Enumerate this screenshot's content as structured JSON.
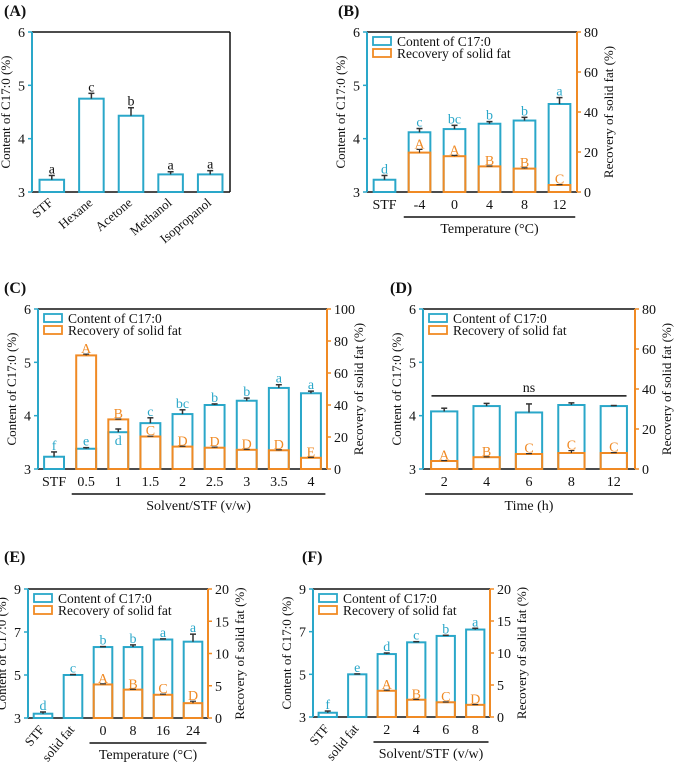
{
  "colors": {
    "content": "#2aa7c9",
    "recovery": "#f08a24",
    "error": "#333333"
  },
  "legend": {
    "content": "Content of C17:0",
    "recovery": "Recovery of solid fat"
  },
  "chart_data": [
    {
      "panel": "(A)",
      "type": "bar",
      "title": "",
      "ylabel": "Content of C17:0 (%)",
      "ylim": [
        3,
        6
      ],
      "yticks": [
        "3",
        "4",
        "5",
        "6"
      ],
      "categories": [
        "STF",
        "Hexane",
        "Acetone",
        "Methanol",
        "Isopropanol"
      ],
      "rotate": [
        true,
        true,
        true,
        true,
        true
      ],
      "content": [
        3.23,
        4.75,
        4.43,
        3.33,
        3.33
      ],
      "content_err": [
        0.08,
        0.1,
        0.15,
        0.05,
        0.07
      ],
      "content_letters": [
        "a",
        "c",
        "b",
        "a",
        "a"
      ],
      "xlabel": "",
      "legend": false
    },
    {
      "panel": "(B)",
      "type": "bar",
      "ylabel": "Content of C17:0 (%)",
      "ylim": [
        3,
        6
      ],
      "yticks": [
        "3",
        "4",
        "5",
        "6"
      ],
      "y2label": "Recovery of solid fat (%)",
      "y2lim": [
        0,
        80
      ],
      "y2ticks": [
        "0",
        "20",
        "40",
        "60",
        "80"
      ],
      "categories": [
        "STF",
        "-4",
        "0",
        "4",
        "8",
        "12"
      ],
      "rotate": [
        false,
        false,
        false,
        false,
        false,
        false
      ],
      "content": [
        3.23,
        4.12,
        4.18,
        4.28,
        4.34,
        4.65
      ],
      "content_err": [
        0.08,
        0.07,
        0.07,
        0.04,
        0.06,
        0.12
      ],
      "content_letters": [
        "d",
        "c",
        "bc",
        "b",
        "b",
        "a"
      ],
      "recovery": [
        null,
        19.7,
        17.9,
        12.8,
        11.7,
        3.5
      ],
      "recovery_err": [
        null,
        1.6,
        0.4,
        0.2,
        0.4,
        0.2
      ],
      "recovery_letters": [
        "",
        "A",
        "A",
        "B",
        "B",
        "C"
      ],
      "group": [
        1,
        5
      ],
      "xlabel": "Temperature (°C)",
      "legend": true
    },
    {
      "panel": "(C)",
      "type": "bar",
      "ylabel": "Content of C17:0 (%)",
      "ylim": [
        3,
        6
      ],
      "yticks": [
        "3",
        "4",
        "5",
        "6"
      ],
      "y2label": "Recovery of solid fat (%)",
      "y2lim": [
        0,
        100
      ],
      "y2ticks": [
        "0",
        "20",
        "40",
        "60",
        "80",
        "100"
      ],
      "categories": [
        "STF",
        "0.5",
        "1",
        "1.5",
        "2",
        "2.5",
        "3",
        "3.5",
        "4"
      ],
      "rotate": [
        false,
        false,
        false,
        false,
        false,
        false,
        false,
        false,
        false
      ],
      "content": [
        3.23,
        3.38,
        3.69,
        3.86,
        4.03,
        4.2,
        4.28,
        4.52,
        4.42
      ],
      "content_err": [
        0.09,
        0.02,
        0.06,
        0.1,
        0.08,
        0.02,
        0.05,
        0.06,
        0.04
      ],
      "content_letters": [
        "f",
        "e",
        "d",
        "c",
        "bc",
        "b",
        "b",
        "a",
        "a"
      ],
      "recovery": [
        null,
        71,
        31,
        20.3,
        14,
        13.3,
        12,
        11.7,
        7
      ],
      "recovery_err": [
        null,
        0.8,
        0.2,
        0.2,
        0.2,
        0.4,
        0.3,
        0.3,
        0.3
      ],
      "recovery_letters": [
        "",
        "A",
        "B",
        "C",
        "D",
        "D",
        "D",
        "D",
        "E"
      ],
      "group": [
        1,
        8
      ],
      "xlabel": "Solvent/STF (v/w)",
      "legend": true
    },
    {
      "panel": "(D)",
      "type": "bar",
      "ylabel": "Content of C17:0 (%)",
      "ylim": [
        3,
        6
      ],
      "yticks": [
        "3",
        "4",
        "5",
        "6"
      ],
      "y2label": "Recovery of solid fat (%)",
      "y2lim": [
        0,
        80
      ],
      "y2ticks": [
        "0",
        "20",
        "40",
        "60",
        "80"
      ],
      "categories": [
        "2",
        "4",
        "6",
        "8",
        "12"
      ],
      "rotate": [
        false,
        false,
        false,
        false,
        false
      ],
      "content": [
        4.08,
        4.18,
        4.06,
        4.2,
        4.18
      ],
      "content_err": [
        0.06,
        0.05,
        0.16,
        0.04,
        0.01
      ],
      "content_letters": [
        "",
        "",
        "",
        "",
        ""
      ],
      "recovery": [
        4,
        5.9,
        7.5,
        8,
        8
      ],
      "recovery_err": [
        0.2,
        0.2,
        0.2,
        1.2,
        0.2
      ],
      "recovery_letters": [
        "A",
        "B",
        "C",
        "C",
        "C"
      ],
      "group": [
        0,
        4
      ],
      "significance": {
        "label": "ns",
        "level": 4.37
      },
      "xlabel": "Time (h)",
      "legend": true
    },
    {
      "panel": "(E)",
      "type": "bar",
      "ylabel": "Content of C17:0 (%)",
      "ylim": [
        3,
        9
      ],
      "yticks": [
        "3",
        "5",
        "7",
        "9"
      ],
      "y2label": "Recovery of solid fat (%)",
      "y2lim": [
        0,
        20
      ],
      "y2ticks": [
        "0",
        "5",
        "10",
        "15",
        "20"
      ],
      "categories": [
        "STF",
        "solid fat",
        "0",
        "8",
        "16",
        "24"
      ],
      "rotate": [
        true,
        true,
        false,
        false,
        false,
        false
      ],
      "content": [
        3.2,
        5.0,
        6.3,
        6.3,
        6.65,
        6.55
      ],
      "content_err": [
        0.08,
        0.02,
        0.02,
        0.1,
        0.03,
        0.35
      ],
      "content_letters": [
        "d",
        "c",
        "b",
        "b",
        "a",
        "a"
      ],
      "recovery": [
        null,
        null,
        5.2,
        4.4,
        3.6,
        2.3
      ],
      "recovery_err": [
        null,
        null,
        0.1,
        0.05,
        0.1,
        0.3
      ],
      "recovery_letters": [
        "",
        "",
        "A",
        "B",
        "C",
        "D"
      ],
      "group": [
        2,
        5
      ],
      "xlabel": "Temperature (°C)",
      "legend": true
    },
    {
      "panel": "(F)",
      "type": "bar",
      "ylabel": "Content of C17:0 (%)",
      "ylim": [
        3,
        9
      ],
      "yticks": [
        "3",
        "5",
        "7",
        "9"
      ],
      "y2label": "Recovery of solid fat (%)",
      "y2lim": [
        0,
        20
      ],
      "y2ticks": [
        "0",
        "5",
        "10",
        "15",
        "20"
      ],
      "categories": [
        "STF",
        "solid fat",
        "2",
        "4",
        "6",
        "8"
      ],
      "rotate": [
        true,
        true,
        false,
        false,
        false,
        false
      ],
      "content": [
        3.2,
        5.0,
        5.95,
        6.5,
        6.8,
        7.1
      ],
      "content_err": [
        0.08,
        0.02,
        0.05,
        0.03,
        0.03,
        0.06
      ],
      "content_letters": [
        "f",
        "e",
        "d",
        "c",
        "b",
        "a"
      ],
      "recovery": [
        null,
        null,
        4.1,
        2.7,
        2.3,
        1.9
      ],
      "recovery_err": [
        null,
        null,
        0.1,
        0.05,
        0.05,
        0.05
      ],
      "recovery_letters": [
        "",
        "",
        "A",
        "B",
        "C",
        "D"
      ],
      "group": [
        2,
        5
      ],
      "xlabel": "Solvent/STF (v/w)",
      "legend": true
    }
  ]
}
